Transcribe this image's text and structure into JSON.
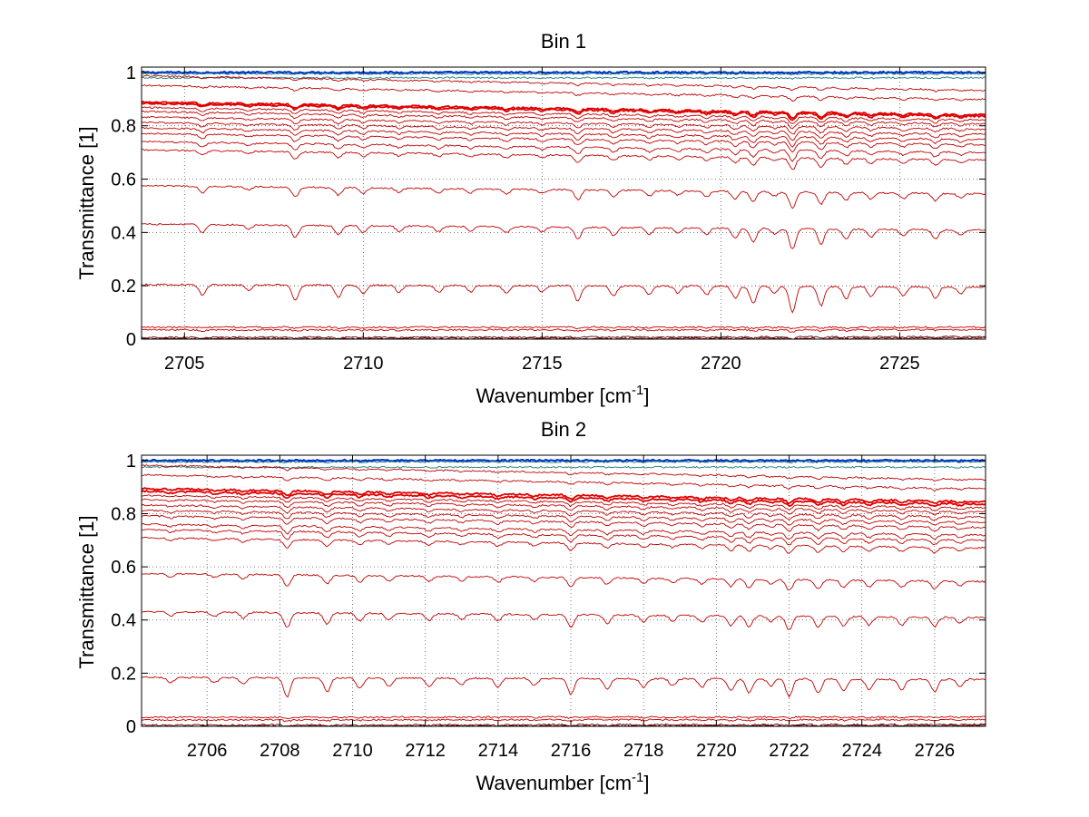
{
  "chart_data": [
    {
      "type": "line",
      "title": "Bin 1",
      "xlabel": "Wavenumber [cm",
      "xlabel_sup": "-1",
      "xlabel_end": "]",
      "ylabel": "Transmittance [1]",
      "xlim": [
        2703.8,
        2727.4
      ],
      "ylim": [
        0,
        1.02
      ],
      "grid": true,
      "xticks": [
        2705,
        2710,
        2715,
        2720,
        2725
      ],
      "xtick_labels": [
        "2705",
        "2710",
        "2715",
        "2720",
        "2725"
      ],
      "yticks": [
        0,
        0.2,
        0.4,
        0.6,
        0.8,
        1
      ],
      "ytick_labels": [
        "0",
        "0.2",
        "0.4",
        "0.6",
        "0.8",
        "1"
      ],
      "line_color": "#c00000",
      "top_line_color": "#0033cc",
      "series_baselines": [
        1.0,
        0.995,
        0.98,
        0.96,
        0.925,
        0.865,
        0.86,
        0.845,
        0.83,
        0.81,
        0.79,
        0.77,
        0.75,
        0.72,
        0.69,
        0.56,
        0.42,
        0.2,
        0.045,
        0.035,
        0.008,
        0.003
      ],
      "absorption_lines": [
        {
          "x": 2705.5,
          "depth": 0.3
        },
        {
          "x": 2706.8,
          "depth": 0.15
        },
        {
          "x": 2708.1,
          "depth": 0.45
        },
        {
          "x": 2709.3,
          "depth": 0.35
        },
        {
          "x": 2710.0,
          "depth": 0.25
        },
        {
          "x": 2711.0,
          "depth": 0.2
        },
        {
          "x": 2712.1,
          "depth": 0.2
        },
        {
          "x": 2713.0,
          "depth": 0.18
        },
        {
          "x": 2714.0,
          "depth": 0.22
        },
        {
          "x": 2715.0,
          "depth": 0.18
        },
        {
          "x": 2716.0,
          "depth": 0.45
        },
        {
          "x": 2717.0,
          "depth": 0.3
        },
        {
          "x": 2718.0,
          "depth": 0.25
        },
        {
          "x": 2718.8,
          "depth": 0.2
        },
        {
          "x": 2719.6,
          "depth": 0.25
        },
        {
          "x": 2720.4,
          "depth": 0.35
        },
        {
          "x": 2720.9,
          "depth": 0.5
        },
        {
          "x": 2721.5,
          "depth": 0.2
        },
        {
          "x": 2722.0,
          "depth": 0.75
        },
        {
          "x": 2722.8,
          "depth": 0.55
        },
        {
          "x": 2723.5,
          "depth": 0.35
        },
        {
          "x": 2724.2,
          "depth": 0.3
        },
        {
          "x": 2725.1,
          "depth": 0.25
        },
        {
          "x": 2726.0,
          "depth": 0.35
        },
        {
          "x": 2726.7,
          "depth": 0.2
        }
      ]
    },
    {
      "type": "line",
      "title": "Bin 2",
      "xlabel": "Wavenumber [cm",
      "xlabel_sup": "-1",
      "xlabel_end": "]",
      "ylabel": "Transmittance [1]",
      "xlim": [
        2704.2,
        2727.4
      ],
      "ylim": [
        0,
        1.02
      ],
      "grid": true,
      "xticks": [
        2706,
        2708,
        2710,
        2712,
        2714,
        2716,
        2718,
        2720,
        2722,
        2724,
        2726
      ],
      "xtick_labels": [
        "2706",
        "2708",
        "2710",
        "2712",
        "2714",
        "2716",
        "2718",
        "2720",
        "2722",
        "2724",
        "2726"
      ],
      "yticks": [
        0,
        0.2,
        0.4,
        0.6,
        0.8,
        1
      ],
      "ytick_labels": [
        "0",
        "0.2",
        "0.4",
        "0.6",
        "0.8",
        "1"
      ],
      "line_color": "#c00000",
      "top_line_color": "#0033cc",
      "series_baselines": [
        1.0,
        0.995,
        0.975,
        0.955,
        0.92,
        0.87,
        0.86,
        0.845,
        0.83,
        0.81,
        0.79,
        0.77,
        0.74,
        0.72,
        0.69,
        0.56,
        0.42,
        0.18,
        0.035,
        0.025,
        0.006,
        0.002
      ],
      "absorption_lines": [
        {
          "x": 2705.0,
          "depth": 0.15
        },
        {
          "x": 2706.2,
          "depth": 0.15
        },
        {
          "x": 2707.0,
          "depth": 0.2
        },
        {
          "x": 2708.2,
          "depth": 0.55
        },
        {
          "x": 2709.3,
          "depth": 0.4
        },
        {
          "x": 2710.2,
          "depth": 0.3
        },
        {
          "x": 2711.0,
          "depth": 0.25
        },
        {
          "x": 2712.1,
          "depth": 0.25
        },
        {
          "x": 2713.0,
          "depth": 0.2
        },
        {
          "x": 2714.0,
          "depth": 0.25
        },
        {
          "x": 2715.0,
          "depth": 0.2
        },
        {
          "x": 2716.0,
          "depth": 0.45
        },
        {
          "x": 2717.0,
          "depth": 0.3
        },
        {
          "x": 2718.0,
          "depth": 0.25
        },
        {
          "x": 2718.8,
          "depth": 0.2
        },
        {
          "x": 2719.6,
          "depth": 0.25
        },
        {
          "x": 2720.4,
          "depth": 0.35
        },
        {
          "x": 2720.9,
          "depth": 0.4
        },
        {
          "x": 2721.5,
          "depth": 0.2
        },
        {
          "x": 2722.0,
          "depth": 0.5
        },
        {
          "x": 2722.8,
          "depth": 0.4
        },
        {
          "x": 2723.5,
          "depth": 0.35
        },
        {
          "x": 2724.2,
          "depth": 0.3
        },
        {
          "x": 2725.1,
          "depth": 0.3
        },
        {
          "x": 2726.0,
          "depth": 0.35
        },
        {
          "x": 2726.7,
          "depth": 0.2
        }
      ]
    }
  ]
}
